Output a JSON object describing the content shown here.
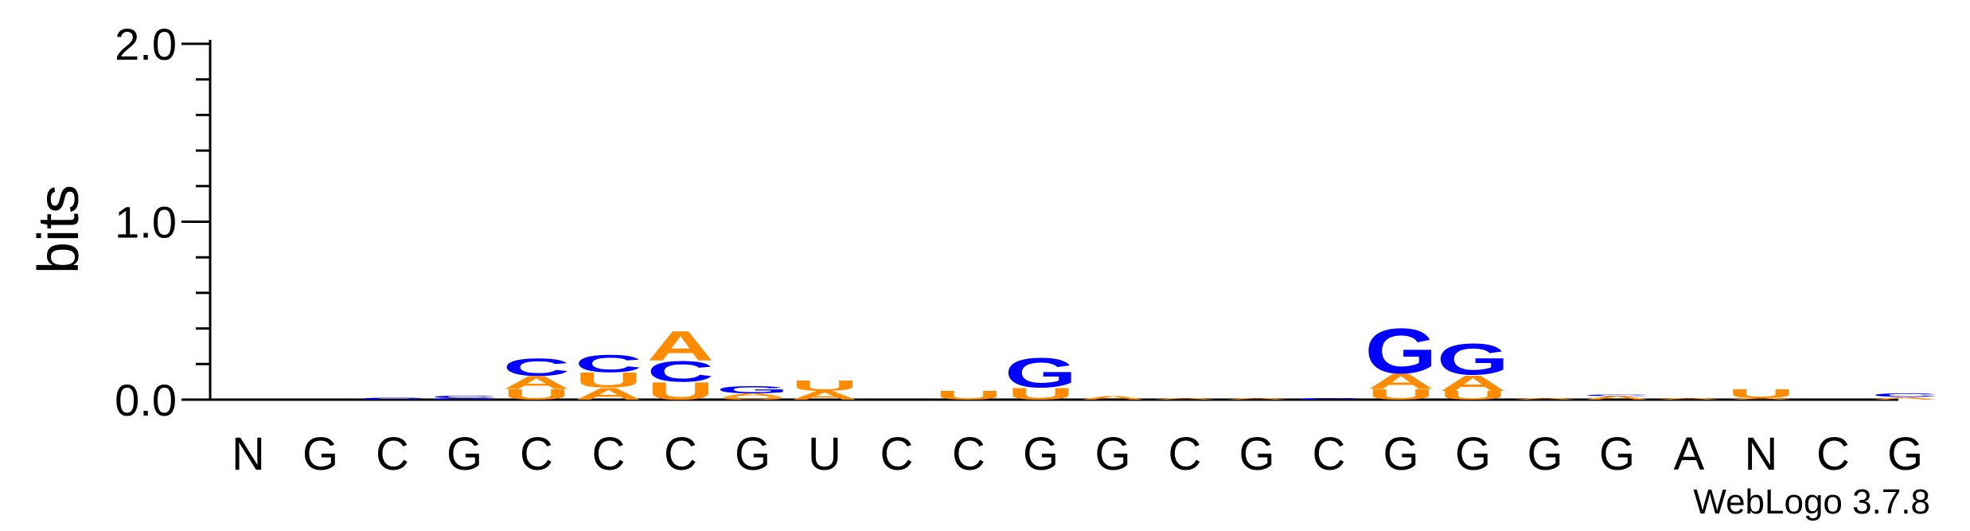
{
  "chart_data": {
    "type": "sequence-logo",
    "ylabel": "bits",
    "ylim": [
      0,
      2.0
    ],
    "yticks": [
      "0.0",
      "1.0",
      "2.0"
    ],
    "footer": "WebLogo 3.7.8",
    "colors": {
      "A": "#ff8c00",
      "U": "#ff8c00",
      "C": "#0000ff",
      "G": "#0000ff"
    },
    "positions": [
      {
        "label": "N",
        "stack": []
      },
      {
        "label": "G",
        "stack": []
      },
      {
        "label": "C",
        "stack": [
          {
            "letter": "C",
            "bits": 0.012
          }
        ]
      },
      {
        "label": "G",
        "stack": [
          {
            "letter": "G",
            "bits": 0.008
          },
          {
            "letter": "C",
            "bits": 0.015
          }
        ]
      },
      {
        "label": "C",
        "stack": [
          {
            "letter": "U",
            "bits": 0.06
          },
          {
            "letter": "A",
            "bits": 0.075
          },
          {
            "letter": "C",
            "bits": 0.1
          }
        ]
      },
      {
        "label": "C",
        "stack": [
          {
            "letter": "A",
            "bits": 0.07
          },
          {
            "letter": "U",
            "bits": 0.085
          },
          {
            "letter": "C",
            "bits": 0.1
          }
        ]
      },
      {
        "label": "C",
        "stack": [
          {
            "letter": "U",
            "bits": 0.1
          },
          {
            "letter": "C",
            "bits": 0.12
          },
          {
            "letter": "A",
            "bits": 0.17
          }
        ]
      },
      {
        "label": "G",
        "stack": [
          {
            "letter": "U",
            "bits": 0.015
          },
          {
            "letter": "A",
            "bits": 0.02
          },
          {
            "letter": "G",
            "bits": 0.04
          }
        ]
      },
      {
        "label": "U",
        "stack": [
          {
            "letter": "A",
            "bits": 0.05
          },
          {
            "letter": "U",
            "bits": 0.06
          }
        ]
      },
      {
        "label": "C",
        "stack": []
      },
      {
        "label": "C",
        "stack": [
          {
            "letter": "U",
            "bits": 0.05
          }
        ]
      },
      {
        "label": "G",
        "stack": [
          {
            "letter": "U",
            "bits": 0.07
          },
          {
            "letter": "G",
            "bits": 0.17
          }
        ]
      },
      {
        "label": "G",
        "stack": [
          {
            "letter": "A",
            "bits": 0.02
          }
        ]
      },
      {
        "label": "C",
        "stack": [
          {
            "letter": "A",
            "bits": 0.01
          }
        ]
      },
      {
        "label": "G",
        "stack": [
          {
            "letter": "A",
            "bits": 0.008
          }
        ]
      },
      {
        "label": "C",
        "stack": [
          {
            "letter": "C",
            "bits": 0.01
          }
        ]
      },
      {
        "label": "G",
        "stack": [
          {
            "letter": "U",
            "bits": 0.06
          },
          {
            "letter": "A",
            "bits": 0.09
          },
          {
            "letter": "G",
            "bits": 0.26
          }
        ]
      },
      {
        "label": "G",
        "stack": [
          {
            "letter": "U",
            "bits": 0.05
          },
          {
            "letter": "A",
            "bits": 0.09
          },
          {
            "letter": "G",
            "bits": 0.18
          }
        ]
      },
      {
        "label": "G",
        "stack": [
          {
            "letter": "A",
            "bits": 0.01
          }
        ]
      },
      {
        "label": "G",
        "stack": [
          {
            "letter": "A",
            "bits": 0.02
          },
          {
            "letter": "C",
            "bits": 0.01
          }
        ]
      },
      {
        "label": "A",
        "stack": [
          {
            "letter": "A",
            "bits": 0.01
          }
        ]
      },
      {
        "label": "N",
        "stack": [
          {
            "letter": "A",
            "bits": 0.01
          },
          {
            "letter": "U",
            "bits": 0.05
          }
        ]
      },
      {
        "label": "C",
        "stack": []
      },
      {
        "label": "G",
        "stack": [
          {
            "letter": "A",
            "bits": 0.015
          },
          {
            "letter": "C",
            "bits": 0.02
          }
        ]
      }
    ]
  }
}
